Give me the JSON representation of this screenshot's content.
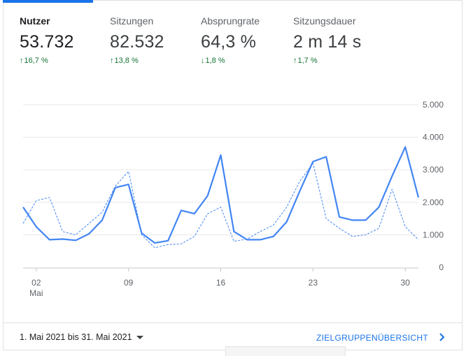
{
  "metrics": [
    {
      "label": "Nutzer",
      "value": "53.732",
      "delta": "16,7 %",
      "direction": "up",
      "active": true
    },
    {
      "label": "Sitzungen",
      "value": "82.532",
      "delta": "13,8 %",
      "direction": "up",
      "active": false
    },
    {
      "label": "Absprungrate",
      "value": "64,3 %",
      "delta": "1,8 %",
      "direction": "down",
      "active": false
    },
    {
      "label": "Sitzungsdauer",
      "value": "2 m 14 s",
      "delta": "1,7 %",
      "direction": "up",
      "active": false
    }
  ],
  "footer": {
    "date_range": "1. Mai 2021 bis 31. Mai 2021",
    "audience_link": "ZIELGRUPPENÜBERSICHT"
  },
  "colors": {
    "accent": "#1a73e8",
    "line": "#4285f4",
    "positive": "#137333"
  },
  "chart_data": {
    "type": "line",
    "y_ticks": [
      "5.000",
      "4.000",
      "3.000",
      "2.000",
      "1.000",
      "0"
    ],
    "ylim": [
      0,
      5000
    ],
    "x_ticks": [
      {
        "day": 2,
        "label": "02",
        "sublabel": "Mai"
      },
      {
        "day": 9,
        "label": "09",
        "sublabel": ""
      },
      {
        "day": 16,
        "label": "16",
        "sublabel": ""
      },
      {
        "day": 23,
        "label": "23",
        "sublabel": ""
      },
      {
        "day": 30,
        "label": "30",
        "sublabel": ""
      }
    ],
    "x": [
      1,
      2,
      3,
      4,
      5,
      6,
      7,
      8,
      9,
      10,
      11,
      12,
      13,
      14,
      15,
      16,
      17,
      18,
      19,
      20,
      21,
      22,
      23,
      24,
      25,
      26,
      27,
      28,
      29,
      30,
      31
    ],
    "series": [
      {
        "style": "solid",
        "values": [
          1850,
          1250,
          850,
          870,
          830,
          1030,
          1450,
          2450,
          2550,
          1050,
          750,
          820,
          1750,
          1650,
          2200,
          3450,
          1100,
          850,
          850,
          950,
          1400,
          2350,
          3250,
          3400,
          1550,
          1450,
          1450,
          1850,
          2800,
          3700,
          2150
        ]
      },
      {
        "style": "dashed",
        "values": [
          1350,
          2050,
          2150,
          1100,
          1000,
          1350,
          1700,
          2500,
          2950,
          1000,
          600,
          700,
          720,
          950,
          1650,
          1850,
          800,
          870,
          1100,
          1300,
          1850,
          2650,
          3200,
          1500,
          1200,
          950,
          1000,
          1200,
          2400,
          1250,
          850
        ]
      }
    ]
  }
}
